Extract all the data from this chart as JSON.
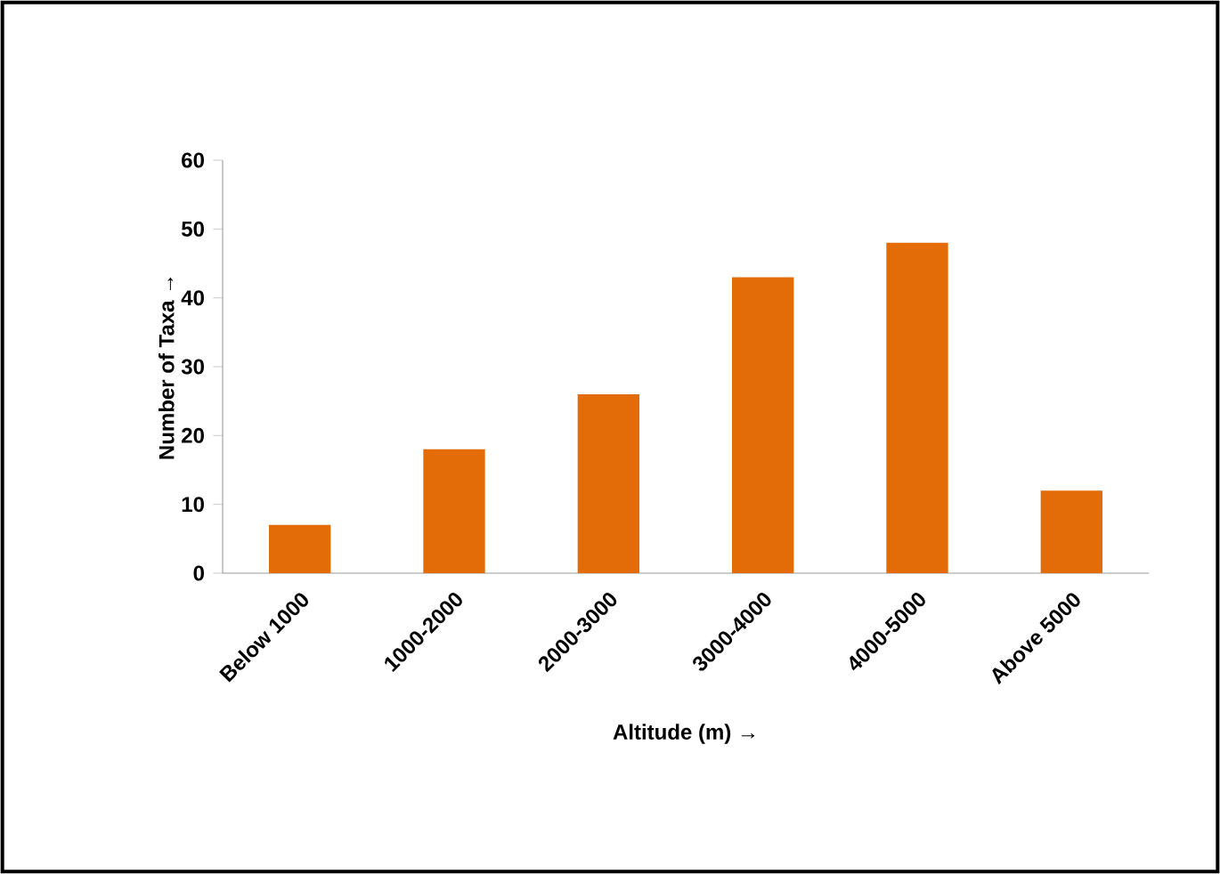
{
  "chart_data": {
    "type": "bar",
    "xlabel": "Altitude (m) →",
    "ylabel": "Number of Taxa →",
    "categories": [
      "Below 1000",
      "1000-2000",
      "2000-3000",
      "3000-4000",
      "4000-5000",
      "Above 5000"
    ],
    "values": [
      7,
      18,
      26,
      43,
      48,
      12
    ],
    "color": "#e36c09",
    "ylim": [
      0,
      60
    ],
    "yticks": [
      0,
      10,
      20,
      30,
      40,
      50,
      60
    ]
  }
}
